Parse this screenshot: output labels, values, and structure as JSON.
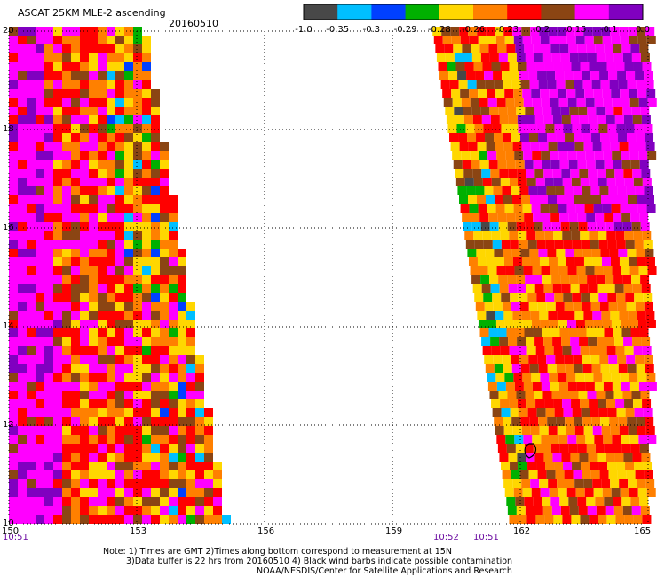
{
  "header": {
    "title": "ASCAT 25KM MLE-2 ascending",
    "date": "20160510"
  },
  "colorbar": {
    "colors": [
      "#484848",
      "#00bfff",
      "#0040ff",
      "#00b000",
      "#ffd700",
      "#ff8000",
      "#ff0000",
      "#8b4513",
      "#ff00ff",
      "#8000c0"
    ],
    "labels": [
      "-1.0",
      "-0.35",
      "-0.3",
      "-0.29",
      "-0.28",
      "-0.26",
      "-0.23",
      "-0.2",
      "-0.15",
      "-0.1",
      "0.0"
    ]
  },
  "axes": {
    "x_ticks": [
      "150",
      "153",
      "156",
      "159",
      "162",
      "165"
    ],
    "y_ticks": [
      "20",
      "18",
      "16",
      "14",
      "12",
      "10"
    ],
    "x_range": [
      150,
      165
    ],
    "y_range": [
      10,
      20
    ]
  },
  "times": {
    "left": "10:51",
    "right_a": "10:52",
    "right_b": "10:51"
  },
  "notes": {
    "line1": "Note: 1) Times are GMT 2)Times along bottom correspond to measurement at 15N",
    "line2": "3)Data buffer is 22 hrs from 20160510 4) Black wind barbs indicate possible contamination",
    "line3": "NOAA/NESDIS/Center for Satellite Applications and Research"
  }
}
